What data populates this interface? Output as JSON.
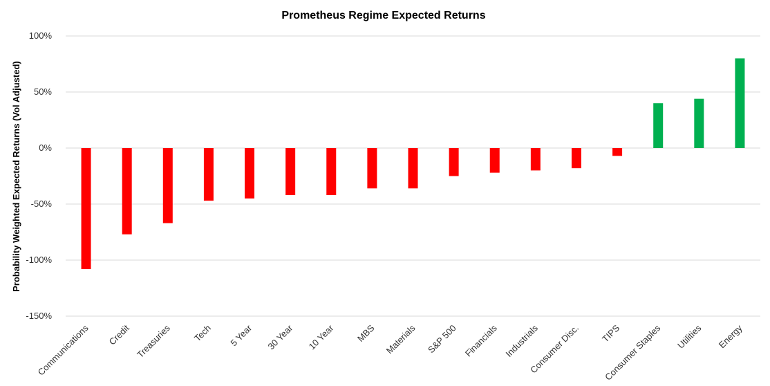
{
  "chart_data": {
    "type": "bar",
    "title": "Prometheus Regime Expected Returns",
    "xlabel": "",
    "ylabel": "Probability Weighted Expected Returns (Vol Adjusted)",
    "ylim": [
      -150,
      100
    ],
    "yticks": [
      100,
      50,
      0,
      -50,
      -100,
      -150
    ],
    "ytick_labels": [
      "100%",
      "50%",
      "0%",
      "-50%",
      "-100%",
      "-150%"
    ],
    "grid": true,
    "legend": "none",
    "categories": [
      "Communications",
      "Credit",
      "Treasuries",
      "Tech",
      "5 Year",
      "30 Year",
      "10 Year",
      "MBS",
      "Materials",
      "S&P 500",
      "Financials",
      "Industrials",
      "Consumer Disc.",
      "TIPS",
      "Consumer Staples",
      "Utilities",
      "Energy"
    ],
    "values": [
      -108,
      -77,
      -67,
      -47,
      -45,
      -42,
      -42,
      -36,
      -36,
      -25,
      -22,
      -20,
      -18,
      -7,
      40,
      44,
      80
    ],
    "colors": {
      "negative": "#ff0000",
      "positive": "#00b050"
    }
  }
}
